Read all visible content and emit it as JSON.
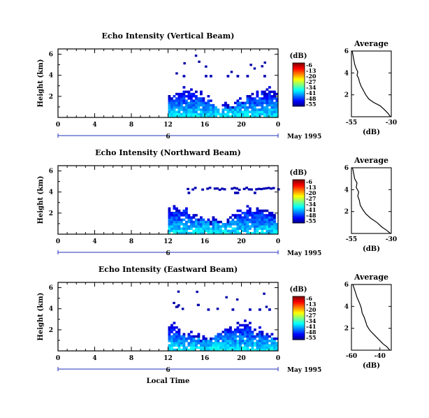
{
  "x_axis": {
    "ticks": [
      "0",
      "4",
      "8",
      "12",
      "16",
      "20",
      "0"
    ],
    "date_ticks": [
      "6"
    ],
    "date_label": "May 1995",
    "label": "Local Time",
    "xlim": [
      0,
      24
    ]
  },
  "colorbar": {
    "unit": "(dB)",
    "ticks": [
      "-6",
      "-13",
      "-20",
      "-27",
      "-34",
      "-41",
      "-48",
      "-55"
    ],
    "range": [
      -55,
      -6
    ],
    "colormap": "jet"
  },
  "average_title": "Average",
  "chart_data": [
    {
      "type": "heatmap",
      "title": "Echo Intensity (Vertical Beam)",
      "ylabel": "Height (km)",
      "yticks": [
        "2",
        "4",
        "6"
      ],
      "ylim": [
        0,
        6.5
      ],
      "xlim": [
        0,
        24
      ],
      "data_start_hour": 12,
      "profile": {
        "title": "Average",
        "xlabel": "(dB)",
        "xticks": [
          "-55",
          "-30"
        ],
        "xlim": [
          -55,
          -30
        ],
        "ylim": [
          0,
          6
        ],
        "values": [
          [
            0.0,
            -30.5
          ],
          [
            0.3,
            -32
          ],
          [
            0.6,
            -34
          ],
          [
            1.0,
            -37
          ],
          [
            1.3,
            -41
          ],
          [
            1.6,
            -44
          ],
          [
            2.0,
            -46
          ],
          [
            2.4,
            -47.5
          ],
          [
            2.8,
            -49
          ],
          [
            3.2,
            -50
          ],
          [
            3.5,
            -50.5
          ],
          [
            3.8,
            -51.5
          ],
          [
            4.1,
            -51
          ],
          [
            4.4,
            -52
          ],
          [
            4.8,
            -53
          ],
          [
            5.2,
            -53.5
          ],
          [
            5.6,
            -54
          ],
          [
            6.0,
            -54.5
          ]
        ]
      }
    },
    {
      "type": "heatmap",
      "title": "Echo Intensity (Northward Beam)",
      "ylabel": "Height (km)",
      "yticks": [
        "2",
        "4",
        "6"
      ],
      "ylim": [
        0,
        6.5
      ],
      "xlim": [
        0,
        24
      ],
      "data_start_hour": 12,
      "profile": {
        "title": "Average",
        "xlabel": "(dB)",
        "xticks": [
          "-55",
          "-30"
        ],
        "xlim": [
          -55,
          -30
        ],
        "ylim": [
          0,
          6
        ],
        "values": [
          [
            0.0,
            -30.5
          ],
          [
            0.3,
            -33
          ],
          [
            0.6,
            -36
          ],
          [
            1.0,
            -39
          ],
          [
            1.4,
            -43
          ],
          [
            1.8,
            -46
          ],
          [
            2.2,
            -48
          ],
          [
            2.6,
            -49.5
          ],
          [
            3.0,
            -50
          ],
          [
            3.4,
            -51
          ],
          [
            3.8,
            -50.5
          ],
          [
            4.2,
            -52
          ],
          [
            4.6,
            -51.5
          ],
          [
            5.0,
            -53
          ],
          [
            5.4,
            -53.5
          ],
          [
            5.8,
            -54
          ],
          [
            6.0,
            -54.5
          ]
        ]
      }
    },
    {
      "type": "heatmap",
      "title": "Echo Intensity (Eastward Beam)",
      "ylabel": "Height (km)",
      "yticks": [
        "2",
        "4",
        "6"
      ],
      "ylim": [
        0,
        6.5
      ],
      "xlim": [
        0,
        24
      ],
      "data_start_hour": 12,
      "profile": {
        "title": "Average",
        "xlabel": "(dB)",
        "xticks": [
          "-60",
          "-40"
        ],
        "xlim": [
          -60,
          -32
        ],
        "ylim": [
          0,
          6
        ],
        "values": [
          [
            0.0,
            -33
          ],
          [
            0.3,
            -35
          ],
          [
            0.6,
            -38
          ],
          [
            1.0,
            -41
          ],
          [
            1.4,
            -44
          ],
          [
            1.8,
            -47
          ],
          [
            2.2,
            -49
          ],
          [
            2.6,
            -50
          ],
          [
            3.0,
            -51
          ],
          [
            3.4,
            -52.5
          ],
          [
            3.8,
            -53
          ],
          [
            4.2,
            -54
          ],
          [
            4.5,
            -55
          ],
          [
            4.8,
            -56
          ],
          [
            5.2,
            -57
          ],
          [
            5.6,
            -58
          ],
          [
            6.0,
            -59
          ]
        ]
      }
    }
  ]
}
